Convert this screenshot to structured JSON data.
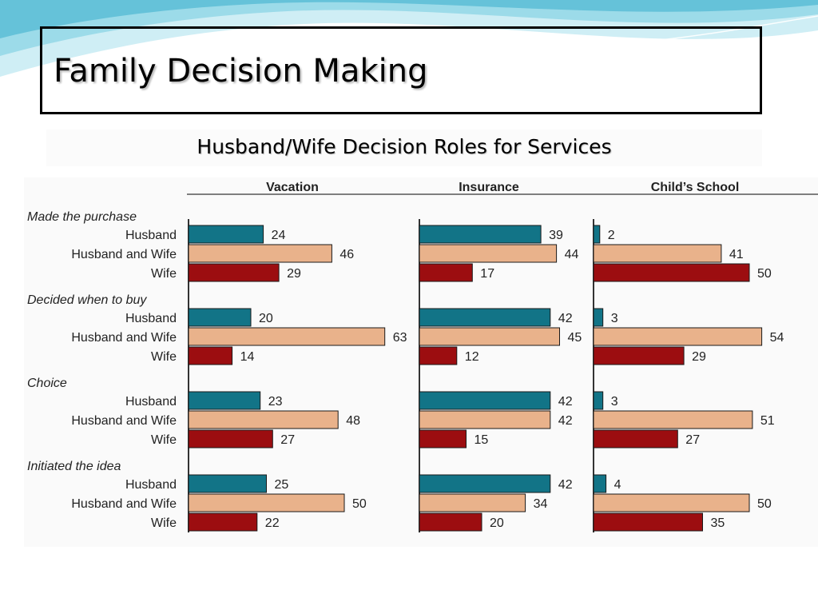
{
  "slide": {
    "title": "Family Decision Making"
  },
  "colors": {
    "husband": "#127487",
    "husband_and_wife": "#e9b28b",
    "wife": "#9c0d10",
    "title_border": "#000000",
    "accent_wave": "#5fc3d9"
  },
  "chart_data": {
    "type": "bar",
    "orientation": "horizontal",
    "title": "Husband/Wife Decision Roles for Services",
    "panels": [
      "Vacation",
      "Insurance",
      "Child’s School"
    ],
    "groups": [
      "Made the purchase",
      "Decided when to buy",
      "Choice",
      "Initiated the idea"
    ],
    "series": [
      {
        "name": "Husband",
        "values": [
          [
            24,
            39,
            2
          ],
          [
            20,
            42,
            3
          ],
          [
            23,
            42,
            3
          ],
          [
            25,
            42,
            4
          ]
        ]
      },
      {
        "name": "Husband and Wife",
        "values": [
          [
            46,
            44,
            41
          ],
          [
            63,
            45,
            54
          ],
          [
            48,
            42,
            51
          ],
          [
            50,
            34,
            50
          ]
        ]
      },
      {
        "name": "Wife",
        "values": [
          [
            29,
            17,
            50
          ],
          [
            14,
            12,
            29
          ],
          [
            27,
            15,
            27
          ],
          [
            22,
            20,
            35
          ]
        ]
      }
    ],
    "xlabel": "",
    "ylabel": "",
    "legend": "none",
    "grid": false
  }
}
